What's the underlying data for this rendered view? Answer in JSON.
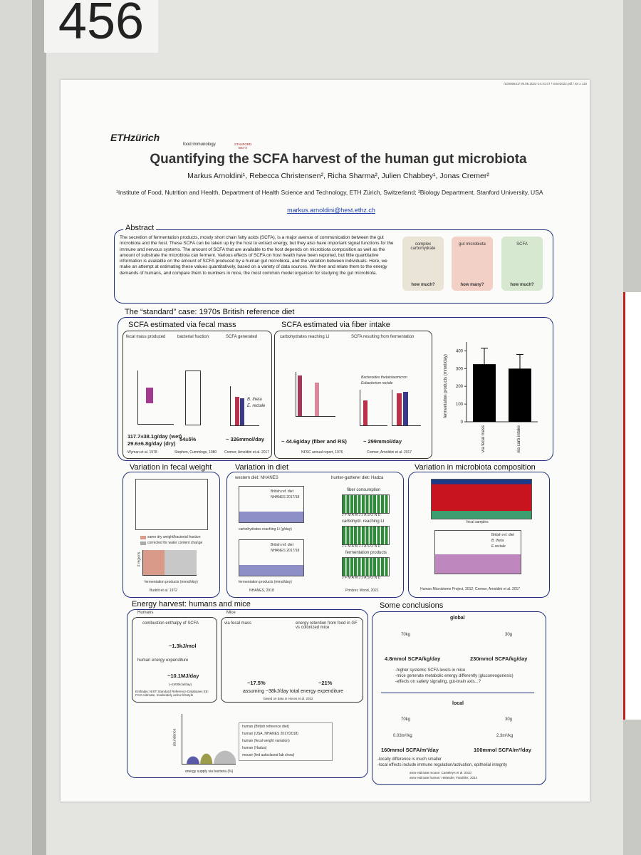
{
  "poster_number": "456",
  "file_info": "/10006641/ 05.08.2022-14:41:07 / isme2022.pdf / 84 x 119",
  "logos": [
    "ETHzürich",
    "food immunology",
    "STANFORD BIO-X"
  ],
  "title": "Quantifying the SCFA harvest of the human gut microbiota",
  "authors": "Markus Arnoldini¹, Rebecca Christensen², Richa Sharma², Julien Chabbey¹, Jonas Cremer²",
  "affiliations": "¹Institute of Food, Nutrition and Health, Department of Health Science and Technology, ETH Zürich, Switzerland; ²Biology Department, Stanford University, USA",
  "email": "markus.arnoldini@hest.ethz.ch",
  "abstract": {
    "heading": "Abstract",
    "text": "The secretion of fermentation products, mostly short chain fatty acids (SCFA), is a major avenue of communication between the gut microbiota and the host. These SCFA can be taken up by the host to extract energy, but they also have important signal functions for the immune and nervous systems. The amount of SCFA that are available to the host depends on microbiota composition as well as the amount of substrate the microbiota can ferment. Various effects of SCFA on host health have been reported, but little quantitative information is available on the amount of SCFA produced by a human gut microbiota, and the variation between individuals. Here, we make an attempt at estimating these values quantitatively, based on a variety of data sources. We then and relate them to the energy demands of humans, and compare them to numbers in mice, the most common model organism for studying the gut microbiota.",
    "diagram": [
      "complex carbohydrate",
      "gut microbiota",
      "SCFA",
      "how much?",
      "how many?",
      "how much?"
    ]
  },
  "standard": {
    "heading": "The “standard” case: 1970s British reference diet",
    "fecal": {
      "heading": "SCFA estimated via fecal mass",
      "columns": [
        "fecal mass produced",
        "bacterial fraction",
        "SCFA generated"
      ],
      "results": [
        "117.7±38.1g/day (wet)",
        "29.6±6.8g/day (dry)",
        "54±5%",
        "~ 326mmol/day"
      ],
      "legend": [
        "B. theta",
        "E. rectale"
      ],
      "sources": [
        "Wyman et al. 1978",
        "Stephen, Cummings, 1980",
        "Cremer, Arnoldini et al. 2017"
      ]
    },
    "fiber": {
      "heading": "SCFA estimated via fiber intake",
      "columns": [
        "carbohydrates reaching LI",
        "SCFA resulting from fermentation"
      ],
      "legend": [
        "Bacteroides thetaiotaomicron",
        "Eubacterium rectale"
      ],
      "results": [
        "~ 44.6g/day (fiber and RS)",
        "~ 299mmol/day"
      ],
      "sources": [
        "NFSC annual report, 1976",
        "Cremer, Arnoldini et al. 2017"
      ]
    },
    "chart_data": {
      "type": "bar",
      "y_label": "fermentation products (mmol/day)",
      "categories": [
        "via fecal mass",
        "via carb intake"
      ],
      "values": [
        325,
        300
      ],
      "errors": [
        90,
        80
      ],
      "color": "#000000",
      "ylim": [
        0,
        450
      ],
      "yticks": [
        0,
        100,
        200,
        300,
        400
      ]
    }
  },
  "fecal_weight": {
    "heading": "Variation in fecal weight",
    "legend": [
      "same dry weight/bacterial fraction",
      "corrected for water content change"
    ],
    "x_label": "fermentation products (mmol/day)",
    "y_label": "# regions",
    "source": "Burkitt et al. 1972"
  },
  "diet": {
    "heading": "Variation in diet",
    "western": "western diet: NHANES",
    "hunter": "hunter-gatherer diet: Hadza",
    "legend": [
      "British ref. diet",
      "NHANES 2017/18"
    ],
    "x_labels": [
      "carbohydrates reaching LI (g/day)",
      "fermentation products (mmol/day)"
    ],
    "panels": [
      "fiber consumption",
      "carbohydr. reaching LI",
      "fermentation products"
    ],
    "months": "J F M A M J J A S O N D",
    "sources": [
      "NHANES, 2018",
      "Pontzer, Wood, 2021"
    ]
  },
  "microbiota": {
    "heading": "Variation in microbiota composition",
    "x_label": "fecal samples",
    "legend": [
      "British ref. diet",
      "B. theta",
      "E.rectale"
    ],
    "source": "Human Microbiome Project, 2012; Cremer, Arnoldini et al. 2017"
  },
  "energy": {
    "heading": "Energy harvest: humans and mice",
    "humans": "Humans",
    "enthalpy_label": "combustion enthalpy of SCFA",
    "enthalpy": "~1.3kJ/mol",
    "expenditure_label": "human energy expenditure",
    "expenditure": "~10.1MJ/day",
    "expenditure_kcal": "(~2400kcal/day)",
    "human_sources": "Enthalpy: NIST Standard Reference Databases EE: FAO estimate, moderately active lifestyle",
    "mice": "Mice",
    "via_fecal": "via fecal mass",
    "retention": "energy retention from food in GF vs colonized mice",
    "fecal_pct": "~17.5%",
    "retention_pct": "~21%",
    "assumption": "assuming ~38kJ/day total energy expenditure",
    "mouse_source": "based on data in Hoces et al. 2022",
    "legend": [
      "human (British reference diet)",
      "human (USA, NHANES 2017/2018)",
      "human (fecal weight variation)",
      "human (Hadza)",
      "mouse (fed autoclaved lab chow)"
    ],
    "x_label": "energy supply via bacteria (%)",
    "y_label": "abundance"
  },
  "conclusions": {
    "heading": "Some conclusions",
    "global": "global",
    "human_mass": "70kg",
    "mouse_mass": "30g",
    "human_global": "4.8mmol SCFA/kg/day",
    "mouse_global": "230mmol SCFA/kg/day",
    "global_points": [
      "-higher systemic SCFA levels in mice",
      "-mice generate metabolic energy differently (gluconeogenesis)",
      "-effects on satiety signaling, gut-brain axis...?"
    ],
    "local": "local",
    "human_area": "0.03m²/kg",
    "mouse_area": "2.3m²/kg",
    "human_local": "160mmol SCFA/m²/day",
    "mouse_local": "100mmol SCFA/m²/day",
    "local_points": [
      "-locally difference is much smaller",
      "-local effects include immune regulation/activation, epithelial integrity"
    ],
    "sources": [
      "area estimate mouse: Casteleyn et al. 2010",
      "area estimate human: Helander, Fändriks, 2014"
    ]
  }
}
